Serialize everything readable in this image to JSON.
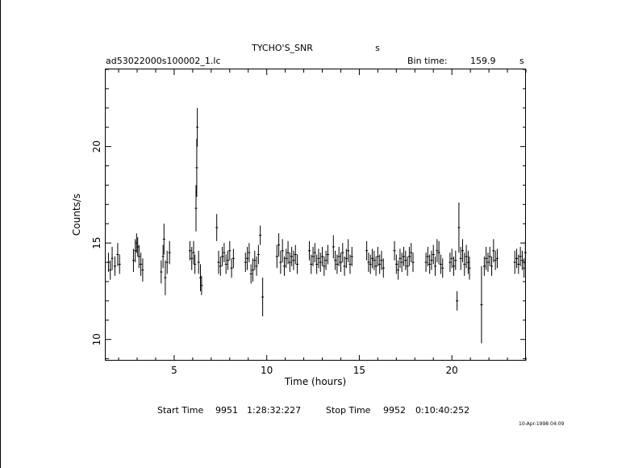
{
  "chart_data": {
    "type": "scatter",
    "title": "TYCHO'S_SNR",
    "title_suffix": "s",
    "file_label": "ad53022000s100002_1.lc",
    "bin_time_label": "Bin time:",
    "bin_time_value": "159.9",
    "bin_time_unit": "s",
    "xlabel": "Time (hours)",
    "ylabel": "Counts/s",
    "xlim": [
      1.3,
      24.0
    ],
    "ylim": [
      8.9,
      24.0
    ],
    "x_ticks": [
      5,
      10,
      15,
      20
    ],
    "x_tick_labels": [
      "5",
      "10",
      "15",
      "20"
    ],
    "y_ticks": [
      10,
      15,
      20
    ],
    "y_tick_labels": [
      "10",
      "15",
      "20"
    ],
    "grid": false,
    "color": "#000000",
    "points": [
      [
        1.45,
        14.0,
        0.5
      ],
      [
        1.55,
        13.6,
        0.5
      ],
      [
        1.65,
        14.2,
        0.6
      ],
      [
        1.8,
        13.8,
        0.5
      ],
      [
        1.95,
        14.4,
        0.6
      ],
      [
        2.05,
        13.9,
        0.5
      ],
      [
        2.8,
        14.1,
        0.6
      ],
      [
        2.9,
        14.6,
        0.6
      ],
      [
        2.97,
        15.0,
        0.5
      ],
      [
        3.03,
        14.8,
        0.5
      ],
      [
        3.1,
        14.3,
        0.6
      ],
      [
        3.2,
        13.9,
        0.6
      ],
      [
        3.3,
        13.6,
        0.6
      ],
      [
        4.3,
        13.5,
        0.6
      ],
      [
        4.4,
        14.3,
        0.6
      ],
      [
        4.45,
        15.2,
        0.8
      ],
      [
        4.52,
        13.2,
        0.9
      ],
      [
        4.62,
        14.0,
        0.6
      ],
      [
        4.75,
        14.5,
        0.6
      ],
      [
        5.85,
        14.6,
        0.5
      ],
      [
        5.95,
        14.2,
        0.6
      ],
      [
        6.05,
        14.5,
        0.6
      ],
      [
        6.12,
        13.9,
        0.5
      ],
      [
        6.18,
        16.8,
        1.2
      ],
      [
        6.22,
        18.9,
        1.5
      ],
      [
        6.25,
        21.0,
        1.0
      ],
      [
        6.32,
        14.0,
        0.6
      ],
      [
        6.42,
        13.2,
        0.7
      ],
      [
        6.48,
        12.8,
        0.5
      ],
      [
        7.3,
        15.8,
        0.7
      ],
      [
        7.4,
        14.0,
        0.6
      ],
      [
        7.5,
        13.8,
        0.5
      ],
      [
        7.6,
        14.3,
        0.5
      ],
      [
        7.7,
        14.5,
        0.5
      ],
      [
        7.8,
        13.9,
        0.5
      ],
      [
        7.9,
        14.1,
        0.5
      ],
      [
        8.0,
        14.6,
        0.5
      ],
      [
        8.1,
        13.7,
        0.5
      ],
      [
        8.2,
        14.2,
        0.5
      ],
      [
        8.85,
        14.0,
        0.5
      ],
      [
        8.95,
        14.2,
        0.6
      ],
      [
        9.05,
        14.5,
        0.5
      ],
      [
        9.15,
        13.4,
        0.5
      ],
      [
        9.25,
        13.6,
        0.6
      ],
      [
        9.35,
        14.1,
        0.5
      ],
      [
        9.45,
        13.8,
        0.5
      ],
      [
        9.55,
        14.4,
        0.5
      ],
      [
        9.65,
        15.4,
        0.5
      ],
      [
        9.78,
        12.2,
        1.0
      ],
      [
        10.55,
        14.3,
        0.6
      ],
      [
        10.65,
        14.9,
        0.6
      ],
      [
        10.75,
        14.0,
        0.6
      ],
      [
        10.85,
        14.6,
        0.6
      ],
      [
        10.95,
        13.8,
        0.5
      ],
      [
        11.05,
        14.2,
        0.5
      ],
      [
        11.15,
        14.5,
        0.6
      ],
      [
        11.25,
        14.0,
        0.5
      ],
      [
        11.35,
        14.3,
        0.5
      ],
      [
        11.45,
        14.1,
        0.5
      ],
      [
        11.55,
        14.4,
        0.5
      ],
      [
        11.65,
        13.9,
        0.5
      ],
      [
        12.3,
        14.6,
        0.5
      ],
      [
        12.4,
        13.9,
        0.5
      ],
      [
        12.5,
        14.3,
        0.5
      ],
      [
        12.6,
        14.5,
        0.5
      ],
      [
        12.7,
        13.9,
        0.5
      ],
      [
        12.8,
        14.2,
        0.5
      ],
      [
        12.9,
        14.0,
        0.5
      ],
      [
        13.0,
        14.3,
        0.5
      ],
      [
        13.1,
        13.8,
        0.5
      ],
      [
        13.2,
        14.1,
        0.5
      ],
      [
        13.3,
        14.4,
        0.5
      ],
      [
        13.6,
        14.8,
        0.6
      ],
      [
        13.7,
        14.1,
        0.5
      ],
      [
        13.8,
        13.9,
        0.5
      ],
      [
        13.9,
        14.3,
        0.5
      ],
      [
        14.0,
        14.0,
        0.5
      ],
      [
        14.1,
        14.5,
        0.5
      ],
      [
        14.2,
        13.8,
        0.5
      ],
      [
        14.3,
        14.2,
        0.5
      ],
      [
        14.4,
        14.6,
        0.6
      ],
      [
        14.5,
        13.9,
        0.5
      ],
      [
        14.6,
        14.3,
        0.5
      ],
      [
        15.4,
        14.6,
        0.5
      ],
      [
        15.5,
        14.0,
        0.5
      ],
      [
        15.6,
        13.9,
        0.5
      ],
      [
        15.7,
        14.2,
        0.5
      ],
      [
        15.8,
        14.1,
        0.5
      ],
      [
        15.9,
        13.8,
        0.5
      ],
      [
        16.0,
        14.3,
        0.5
      ],
      [
        16.1,
        13.9,
        0.5
      ],
      [
        16.2,
        14.1,
        0.5
      ],
      [
        16.3,
        13.7,
        0.5
      ],
      [
        16.9,
        14.6,
        0.5
      ],
      [
        17.0,
        13.9,
        0.5
      ],
      [
        17.1,
        13.6,
        0.5
      ],
      [
        17.2,
        14.2,
        0.5
      ],
      [
        17.3,
        14.0,
        0.5
      ],
      [
        17.4,
        14.3,
        0.5
      ],
      [
        17.5,
        14.1,
        0.5
      ],
      [
        17.6,
        13.8,
        0.5
      ],
      [
        17.7,
        14.3,
        0.5
      ],
      [
        17.8,
        14.5,
        0.5
      ],
      [
        17.9,
        14.0,
        0.5
      ],
      [
        18.6,
        14.0,
        0.5
      ],
      [
        18.7,
        14.3,
        0.5
      ],
      [
        18.8,
        13.9,
        0.5
      ],
      [
        18.9,
        14.1,
        0.5
      ],
      [
        19.0,
        14.4,
        0.5
      ],
      [
        19.1,
        13.8,
        0.5
      ],
      [
        19.2,
        14.6,
        0.6
      ],
      [
        19.3,
        14.5,
        0.6
      ],
      [
        19.4,
        13.9,
        0.5
      ],
      [
        19.5,
        13.7,
        0.5
      ],
      [
        19.9,
        14.0,
        0.5
      ],
      [
        20.0,
        14.2,
        0.5
      ],
      [
        20.1,
        13.8,
        0.5
      ],
      [
        20.2,
        14.1,
        0.5
      ],
      [
        20.28,
        12.0,
        0.5
      ],
      [
        20.38,
        15.8,
        1.3
      ],
      [
        20.48,
        14.2,
        0.6
      ],
      [
        20.58,
        14.6,
        0.6
      ],
      [
        20.68,
        13.9,
        0.6
      ],
      [
        20.78,
        14.3,
        0.6
      ],
      [
        20.88,
        14.0,
        0.6
      ],
      [
        20.95,
        13.7,
        0.6
      ],
      [
        21.6,
        11.8,
        2.0
      ],
      [
        21.75,
        13.8,
        0.5
      ],
      [
        21.85,
        14.2,
        0.6
      ],
      [
        21.95,
        14.0,
        0.5
      ],
      [
        22.05,
        14.3,
        0.5
      ],
      [
        22.15,
        13.8,
        0.5
      ],
      [
        22.25,
        14.6,
        0.6
      ],
      [
        22.35,
        14.1,
        0.5
      ],
      [
        22.45,
        14.2,
        0.5
      ],
      [
        23.4,
        14.0,
        0.6
      ],
      [
        23.5,
        14.2,
        0.5
      ],
      [
        23.6,
        13.9,
        0.5
      ],
      [
        23.7,
        14.3,
        0.5
      ],
      [
        23.8,
        14.1,
        0.5
      ],
      [
        23.9,
        13.7,
        0.5
      ],
      [
        23.97,
        14.5,
        0.6
      ]
    ]
  },
  "footer": {
    "start_label": "Start Time",
    "start_day": "9951",
    "start_time": "1:28:32:227",
    "stop_label": "Stop Time",
    "stop_day": "9952",
    "stop_time": "0:10:40:252",
    "timestamp": "10-Apr-1998 04:09"
  }
}
